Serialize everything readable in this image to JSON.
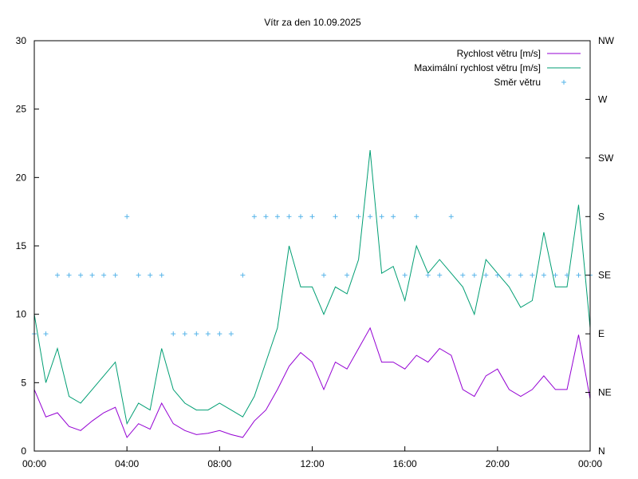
{
  "chart_data": {
    "type": "line",
    "title": "Vítr za den 10.09.2025",
    "xlabel": "",
    "ylabel": "",
    "xlim": [
      "00:00",
      "24:00"
    ],
    "ylim": [
      0,
      30
    ],
    "x_ticks": [
      "00:00",
      "04:00",
      "08:00",
      "12:00",
      "16:00",
      "20:00",
      "00:00"
    ],
    "y_ticks": [
      0,
      5,
      10,
      15,
      20,
      25,
      30
    ],
    "y2_ticks": [
      "N",
      "NE",
      "E",
      "SE",
      "S",
      "SW",
      "W",
      "NW"
    ],
    "legend": {
      "placement": "top-right"
    },
    "grid": false,
    "x": [
      "00:00",
      "00:30",
      "01:00",
      "01:30",
      "02:00",
      "02:30",
      "03:00",
      "03:30",
      "04:00",
      "04:30",
      "05:00",
      "05:30",
      "06:00",
      "06:30",
      "07:00",
      "07:30",
      "08:00",
      "08:30",
      "09:00",
      "09:30",
      "10:00",
      "10:30",
      "11:00",
      "11:30",
      "12:00",
      "12:30",
      "13:00",
      "13:30",
      "14:00",
      "14:30",
      "15:00",
      "15:30",
      "16:00",
      "16:30",
      "17:00",
      "17:30",
      "18:00",
      "18:30",
      "19:00",
      "19:30",
      "20:00",
      "20:30",
      "21:00",
      "21:30",
      "22:00",
      "22:30",
      "23:00",
      "23:30",
      "24:00"
    ],
    "series": [
      {
        "name": "Rychlost větru [m/s]",
        "color": "#9400d3",
        "kind": "line",
        "values": [
          4.5,
          2.5,
          2.8,
          1.8,
          1.5,
          2.2,
          2.8,
          3.2,
          1.0,
          2.0,
          1.6,
          3.5,
          2.0,
          1.5,
          1.2,
          1.3,
          1.5,
          1.2,
          1.0,
          2.2,
          3.0,
          4.5,
          6.2,
          7.2,
          6.5,
          4.5,
          6.5,
          6.0,
          7.5,
          9.0,
          6.5,
          6.5,
          6.0,
          7.0,
          6.5,
          7.5,
          7.0,
          4.5,
          4.0,
          5.5,
          6.0,
          4.5,
          4.0,
          4.5,
          5.5,
          4.5,
          4.5,
          8.5,
          3.8
        ]
      },
      {
        "name": "Maximální rychlost větru [m/s]",
        "color": "#009e73",
        "kind": "line",
        "values": [
          10.0,
          5.0,
          7.5,
          4.0,
          3.5,
          4.5,
          5.5,
          6.5,
          2.0,
          3.5,
          3.0,
          7.5,
          4.5,
          3.5,
          3.0,
          3.0,
          3.5,
          3.0,
          2.5,
          4.0,
          6.5,
          9.0,
          15.0,
          12.0,
          12.0,
          10.0,
          12.0,
          11.5,
          14.0,
          22.0,
          13.0,
          13.5,
          11.0,
          15.0,
          13.0,
          14.0,
          13.0,
          12.0,
          10.0,
          14.0,
          13.0,
          12.0,
          10.5,
          11.0,
          16.0,
          12.0,
          12.0,
          18.0,
          9.0
        ]
      },
      {
        "name": "Směr větru",
        "color": "#56b4e9",
        "kind": "points",
        "axis": "y2",
        "values": [
          "E",
          "E",
          "SE",
          "SE",
          "SE",
          "SE",
          "SE",
          "SE",
          "S",
          "SE",
          "SE",
          "SE",
          "E",
          "E",
          "E",
          "E",
          "E",
          "E",
          "SE",
          "S",
          "S",
          "S",
          "S",
          "S",
          "S",
          "SE",
          "S",
          "SE",
          "S",
          "S",
          "S",
          "S",
          "SE",
          "S",
          "SE",
          "SE",
          "S",
          "SE",
          "SE",
          "SE",
          "SE",
          "SE",
          "SE",
          "SE",
          "SE",
          "SE",
          "SE",
          "SE",
          "SE"
        ]
      }
    ]
  }
}
